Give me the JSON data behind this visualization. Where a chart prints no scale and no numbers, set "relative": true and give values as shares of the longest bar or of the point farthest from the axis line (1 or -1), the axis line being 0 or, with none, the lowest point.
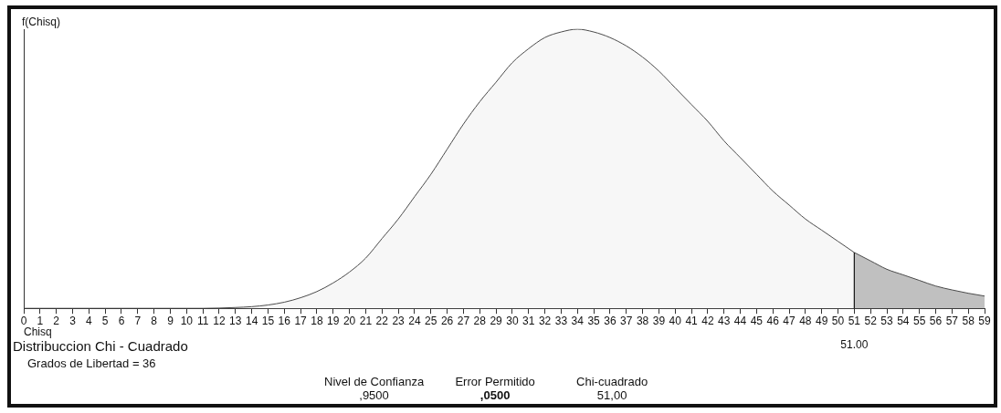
{
  "chart_data": {
    "type": "area",
    "xlabel": "Chisq",
    "ylabel": "f(Chisq)",
    "relative": true,
    "xlim": [
      0,
      59
    ],
    "xticks": [
      0,
      1,
      2,
      3,
      4,
      5,
      6,
      7,
      8,
      9,
      10,
      11,
      12,
      13,
      14,
      15,
      16,
      17,
      18,
      19,
      20,
      21,
      22,
      23,
      24,
      25,
      26,
      27,
      28,
      29,
      30,
      31,
      32,
      33,
      34,
      35,
      36,
      37,
      38,
      39,
      40,
      41,
      42,
      43,
      44,
      45,
      46,
      47,
      48,
      49,
      50,
      51,
      52,
      53,
      54,
      55,
      56,
      57,
      58,
      59
    ],
    "tick_labels": "x",
    "marker": "none",
    "series": [
      {
        "color": "#f7f7f7",
        "x": [
          0,
          2,
          4,
          6,
          8,
          10,
          11,
          12,
          13,
          14,
          15,
          16,
          17,
          18,
          19,
          20,
          21,
          22,
          23,
          24,
          25,
          26,
          27,
          28,
          29,
          30,
          31,
          32,
          33,
          34,
          35,
          36,
          37,
          38,
          39,
          40,
          41,
          42,
          43,
          44,
          45,
          46,
          47,
          48,
          49,
          50,
          51
        ],
        "values": [
          0,
          0,
          0,
          0,
          0,
          0,
          0,
          0.001,
          0.003,
          0.006,
          0.012,
          0.022,
          0.038,
          0.06,
          0.091,
          0.13,
          0.18,
          0.25,
          0.32,
          0.4,
          0.48,
          0.57,
          0.66,
          0.74,
          0.81,
          0.88,
          0.93,
          0.97,
          0.99,
          1,
          0.99,
          0.97,
          0.94,
          0.9,
          0.85,
          0.79,
          0.73,
          0.67,
          0.6,
          0.54,
          0.48,
          0.42,
          0.37,
          0.32,
          0.28,
          0.24,
          0.2
        ]
      },
      {
        "color": "#c0c0c0",
        "x": [
          51,
          52,
          53,
          54,
          55,
          56,
          57,
          58,
          59
        ],
        "values": [
          0.2,
          0.17,
          0.14,
          0.12,
          0.1,
          0.08,
          0.066,
          0.054,
          0.044
        ]
      }
    ],
    "ref_lines": [
      {
        "axis": "x",
        "value": 51,
        "label": "51.00"
      }
    ],
    "annotations": [
      "Distribuccion Chi - Cuadrado",
      "Grados de Libertad = 36",
      "Nivel de Confianza",
      ",9500",
      "Error Permitido",
      ",0500",
      "Chi-cuadrado",
      "51,00"
    ]
  }
}
